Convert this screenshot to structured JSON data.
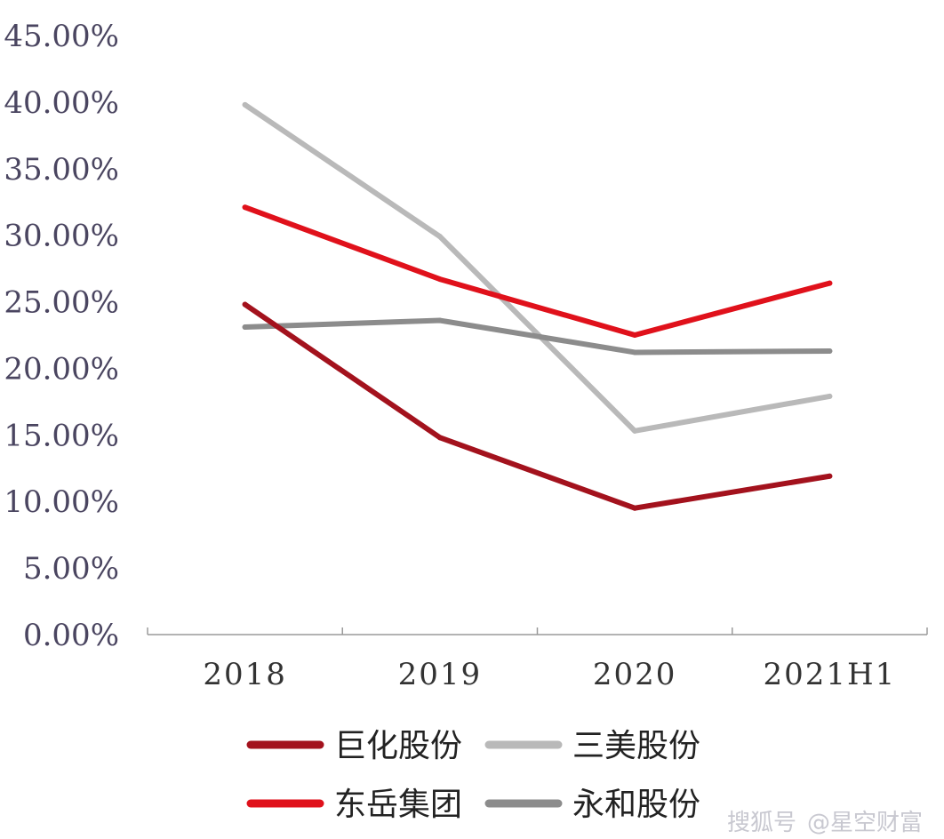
{
  "chart_data": {
    "type": "line",
    "title": "",
    "xlabel": "",
    "ylabel": "",
    "categories": [
      "2018",
      "2019",
      "2020",
      "2021H1"
    ],
    "ylim": [
      0,
      45
    ],
    "yticks": [
      "0.00%",
      "5.00%",
      "10.00%",
      "15.00%",
      "20.00%",
      "25.00%",
      "30.00%",
      "35.00%",
      "40.00%",
      "45.00%"
    ],
    "grid": false,
    "legend_position": "bottom",
    "series": [
      {
        "name": "巨化股份",
        "color": "#a3121d",
        "values": [
          24.8,
          14.8,
          9.5,
          11.9
        ]
      },
      {
        "name": "三美股份",
        "color": "#b9b9b9",
        "values": [
          39.8,
          29.9,
          15.3,
          17.9
        ]
      },
      {
        "name": "东岳集团",
        "color": "#e0111b",
        "values": [
          32.1,
          26.7,
          22.5,
          26.4
        ]
      },
      {
        "name": "永和股份",
        "color": "#8c8c8c",
        "values": [
          23.1,
          23.6,
          21.2,
          21.3
        ]
      }
    ]
  },
  "watermark": {
    "left": "搜狐号",
    "right": "@星空财富"
  }
}
